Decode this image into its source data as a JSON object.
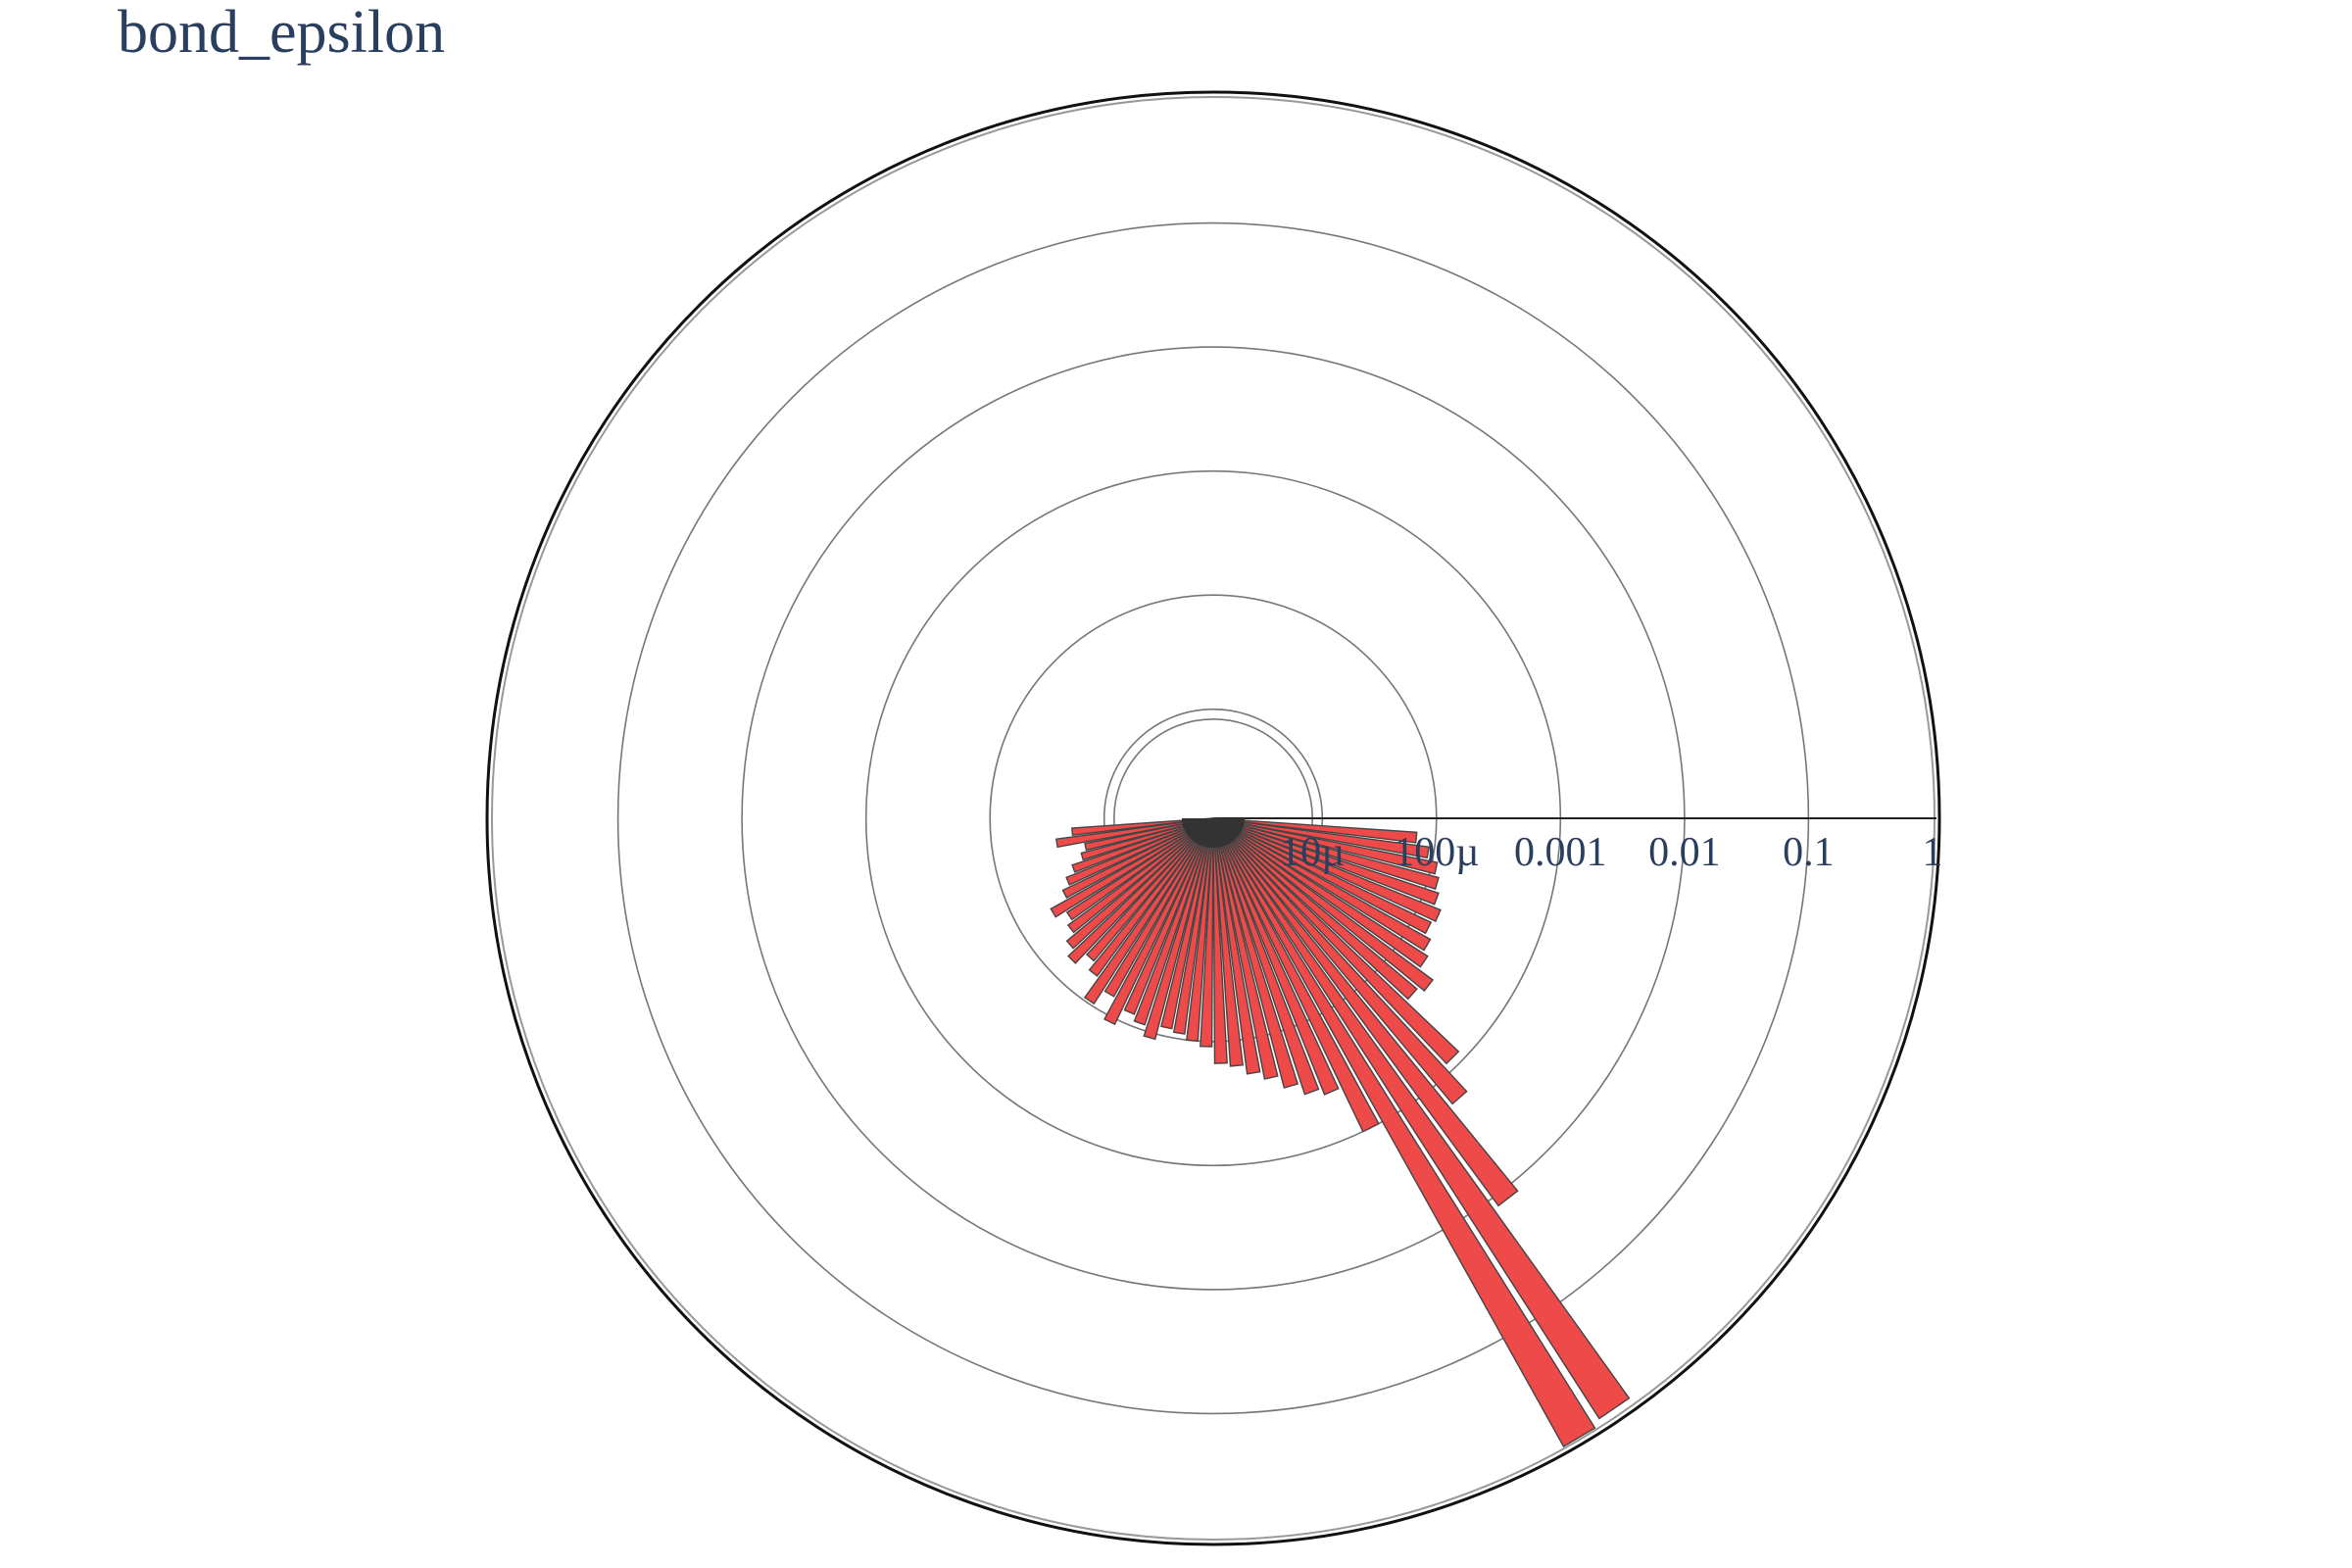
{
  "chart_data": {
    "type": "bar",
    "subtype": "polar-barpolar",
    "title": "bond_epsilon",
    "radial_axis": {
      "scale": "log",
      "range_log10": [
        -5.8,
        0
      ],
      "tick_labels": [
        "10µ",
        "100µ",
        "0.001",
        "0.01",
        "0.1",
        "1"
      ],
      "tick_values": [
        1e-05,
        0.0001,
        0.001,
        0.01,
        0.1,
        1
      ]
    },
    "angular_axis": {
      "direction": "clockwise",
      "rotation_deg": 0,
      "bin_width_deg": 3.6
    },
    "series": [
      {
        "name": "bond_epsilon",
        "color": "#ef4a4a",
        "line_color": "#444444",
        "theta_deg": [
          5.4,
          9.0,
          12.6,
          16.2,
          19.8,
          23.4,
          27.0,
          30.6,
          34.2,
          37.8,
          41.4,
          45.0,
          48.6,
          52.2,
          55.8,
          59.4,
          63.0,
          66.6,
          70.2,
          73.8,
          77.4,
          81.0,
          84.6,
          88.2,
          91.8,
          95.4,
          99.0,
          102.6,
          106.2,
          109.8,
          113.4,
          117.0,
          120.6,
          124.2,
          127.8,
          131.4,
          135.0,
          138.6,
          142.2,
          145.8,
          149.4,
          153.0,
          156.6,
          160.2,
          163.8,
          167.4,
          171.0,
          174.6
        ],
        "r": [
          7e-05,
          9e-05,
          0.00011,
          0.00012,
          0.00013,
          0.00015,
          0.00014,
          0.00016,
          0.00018,
          0.00025,
          0.00022,
          0.00085,
          0.0016,
          0.012,
          0.9,
          1.0,
          0.001,
          0.0004,
          0.00035,
          0.00028,
          0.00022,
          0.00019,
          0.00016,
          0.00015,
          0.00011,
          0.0001,
          9e-05,
          8.5e-05,
          0.00011,
          9e-05,
          8e-05,
          0.00011,
          7e-05,
          9.5e-05,
          6e-05,
          5e-05,
          6.5e-05,
          5.5e-05,
          4.5e-05,
          4e-05,
          5e-05,
          3.5e-05,
          3e-05,
          2.5e-05,
          2e-05,
          1.8e-05,
          3e-05,
          2.2e-05
        ]
      }
    ]
  }
}
